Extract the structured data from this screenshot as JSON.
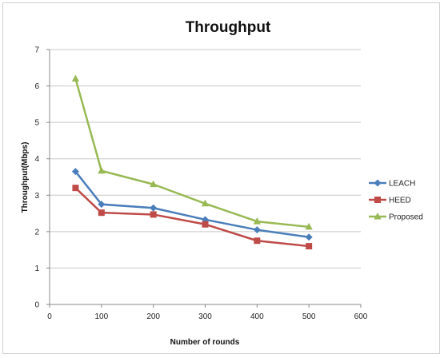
{
  "chart_data": {
    "type": "line",
    "title": "Throughput",
    "xlabel": "Number of rounds",
    "ylabel": "Throughput(Mbps)",
    "xlim": [
      0,
      600
    ],
    "ylim": [
      0,
      7
    ],
    "xticks": [
      0,
      100,
      200,
      300,
      400,
      500,
      600
    ],
    "yticks": [
      0,
      1,
      2,
      3,
      4,
      5,
      6,
      7
    ],
    "grid": "horizontal",
    "legend_position": "right",
    "x": [
      50,
      100,
      200,
      300,
      400,
      500
    ],
    "series": [
      {
        "name": "LEACH",
        "color": "#4a7ebb",
        "marker": "diamond",
        "values": [
          3.65,
          2.75,
          2.65,
          2.33,
          2.05,
          1.85
        ]
      },
      {
        "name": "HEED",
        "color": "#be4b48",
        "marker": "square",
        "values": [
          3.2,
          2.52,
          2.47,
          2.2,
          1.75,
          1.6
        ]
      },
      {
        "name": "Proposed",
        "color": "#98b954",
        "marker": "triangle",
        "values": [
          6.2,
          3.67,
          3.3,
          2.77,
          2.28,
          2.13
        ]
      }
    ]
  }
}
